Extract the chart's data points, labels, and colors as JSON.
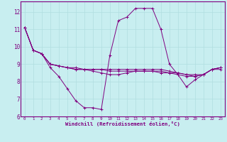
{
  "xlabel": "Windchill (Refroidissement éolien,°C)",
  "background_color": "#c8eef0",
  "line_color": "#800080",
  "grid_color": "#b0dde0",
  "xlim": [
    -0.5,
    23.5
  ],
  "ylim": [
    6.0,
    12.6
  ],
  "yticks": [
    6,
    7,
    8,
    9,
    10,
    11,
    12
  ],
  "xticks": [
    0,
    1,
    2,
    3,
    4,
    5,
    6,
    7,
    8,
    9,
    10,
    11,
    12,
    13,
    14,
    15,
    16,
    17,
    18,
    19,
    20,
    21,
    22,
    23
  ],
  "series": [
    [
      11.1,
      9.8,
      9.6,
      8.8,
      8.3,
      7.6,
      6.9,
      6.5,
      6.5,
      6.4,
      9.5,
      11.5,
      11.7,
      12.2,
      12.2,
      12.2,
      11.0,
      9.0,
      8.4,
      7.7,
      8.1,
      8.4,
      8.7,
      8.7
    ],
    [
      11.1,
      9.8,
      9.6,
      9.0,
      8.9,
      8.8,
      8.8,
      8.7,
      8.6,
      8.5,
      8.4,
      8.4,
      8.5,
      8.6,
      8.6,
      8.6,
      8.6,
      8.5,
      8.4,
      8.3,
      8.3,
      8.4,
      8.7,
      8.8
    ],
    [
      11.1,
      9.8,
      9.6,
      9.0,
      8.9,
      8.8,
      8.7,
      8.7,
      8.7,
      8.7,
      8.7,
      8.7,
      8.7,
      8.7,
      8.7,
      8.7,
      8.7,
      8.6,
      8.5,
      8.4,
      8.4,
      8.4,
      8.7,
      8.8
    ],
    [
      11.1,
      9.8,
      9.6,
      9.0,
      8.9,
      8.8,
      8.7,
      8.7,
      8.7,
      8.7,
      8.6,
      8.6,
      8.6,
      8.6,
      8.6,
      8.6,
      8.5,
      8.5,
      8.5,
      8.4,
      8.3,
      8.4,
      8.7,
      8.8
    ]
  ]
}
